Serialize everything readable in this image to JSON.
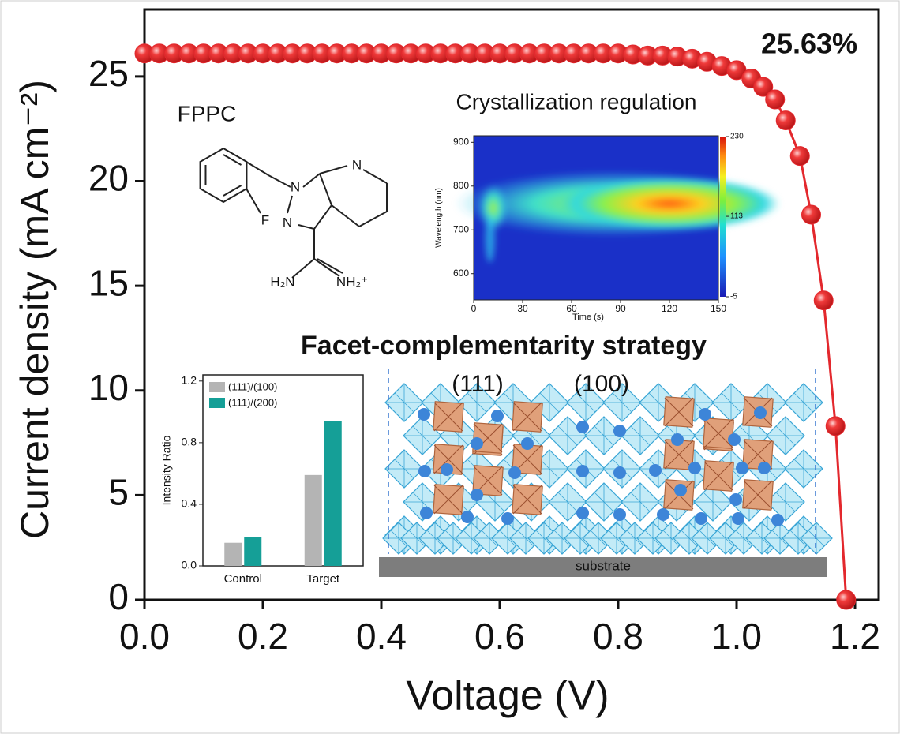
{
  "chart_data": [
    {
      "type": "line",
      "xlabel": "Voltage (V)",
      "ylabel": "Current density (mA cm⁻²)",
      "color": "#e3282d",
      "x": [
        0,
        0.025,
        0.05,
        0.075,
        0.1,
        0.125,
        0.15,
        0.175,
        0.2,
        0.225,
        0.25,
        0.275,
        0.3,
        0.325,
        0.35,
        0.375,
        0.4,
        0.425,
        0.45,
        0.475,
        0.5,
        0.525,
        0.55,
        0.575,
        0.6,
        0.625,
        0.65,
        0.675,
        0.7,
        0.725,
        0.75,
        0.775,
        0.8,
        0.825,
        0.85,
        0.875,
        0.9,
        0.925,
        0.95,
        0.975,
        1.0,
        1.025,
        1.045,
        1.065,
        1.083,
        1.107,
        1.126,
        1.147,
        1.167,
        1.185
      ],
      "values": [
        26.1,
        26.1,
        26.1,
        26.1,
        26.1,
        26.1,
        26.1,
        26.1,
        26.1,
        26.1,
        26.1,
        26.1,
        26.1,
        26.1,
        26.1,
        26.1,
        26.1,
        26.1,
        26.1,
        26.1,
        26.1,
        26.1,
        26.1,
        26.1,
        26.1,
        26.1,
        26.1,
        26.1,
        26.1,
        26.1,
        26.1,
        26.1,
        26.1,
        26.05,
        26.0,
        26.0,
        25.95,
        25.85,
        25.7,
        25.5,
        25.3,
        24.9,
        24.5,
        23.9,
        22.9,
        21.2,
        18.4,
        14.3,
        8.3,
        0
      ],
      "xlim": [
        0,
        1.24
      ],
      "ylim": [
        0,
        28.2
      ],
      "xticks": [
        {
          "value": 0,
          "label": "0.0"
        },
        0.2,
        0.4,
        0.6,
        0.8,
        {
          "value": 1,
          "label": "1.0"
        },
        1.2
      ],
      "yticks": [
        0,
        5,
        10,
        15,
        20,
        25
      ],
      "annotations": [
        "25.63%",
        "FPPC",
        "Facet-complementarity strategy",
        "(111)",
        "(100)",
        "substrate"
      ],
      "molecule_labels": [
        "N",
        "N",
        "N",
        "F",
        "H₂N",
        "NH₂⁺"
      ]
    },
    {
      "type": "bar",
      "ylabel": "Intensity Ratio",
      "categories": [
        "Control",
        "Target"
      ],
      "series": [
        {
          "name": "(111)/(100)",
          "color": "#b4b4b4",
          "values": [
            0.15,
            0.59
          ]
        },
        {
          "name": "(111)/(200)",
          "color": "#159f97",
          "values": [
            0.185,
            0.94
          ]
        }
      ],
      "ylim": [
        0,
        1.24
      ],
      "yticks": [
        {
          "value": 0,
          "label": "0.0"
        },
        0.4,
        0.8,
        1.2
      ]
    },
    {
      "type": "heatmap",
      "title": "Crystallization regulation",
      "xlabel": "Time (s)",
      "ylabel": "Wavelength (nm)",
      "xlim": [
        0,
        150
      ],
      "xticks": [
        0,
        30,
        60,
        90,
        120,
        150
      ],
      "ylim": [
        540,
        915
      ],
      "yticks": [
        600,
        700,
        800,
        900
      ],
      "colorbar_lim": [
        -5,
        230
      ],
      "colorbar_ticks": [
        -5,
        113,
        230
      ]
    }
  ]
}
